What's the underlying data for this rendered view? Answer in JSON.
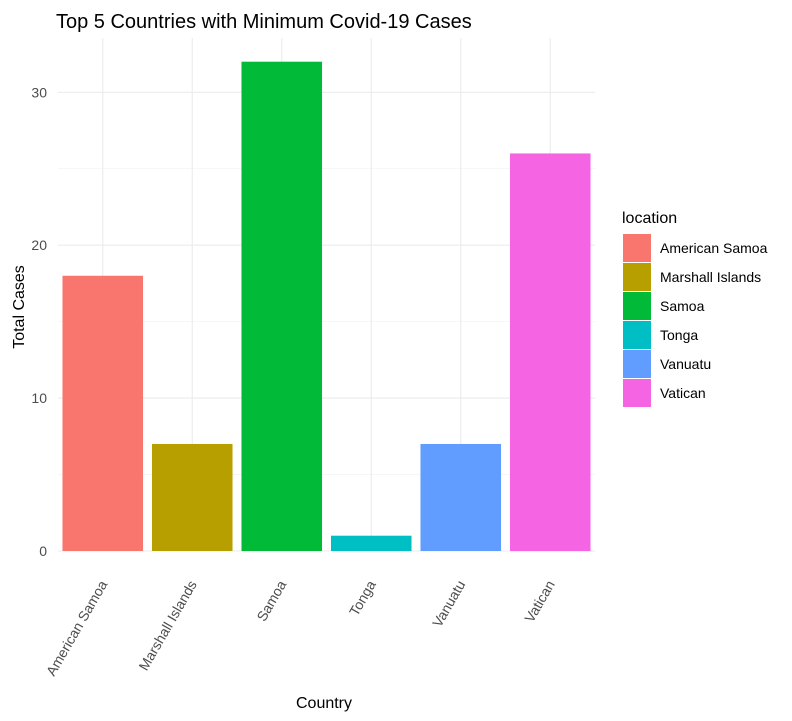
{
  "chart_data": {
    "type": "bar",
    "title": "Top 5 Countries with Minimum Covid-19 Cases",
    "xlabel": "Country",
    "ylabel": "Total Cases",
    "categories": [
      "American Samoa",
      "Marshall Islands",
      "Samoa",
      "Tonga",
      "Vanuatu",
      "Vatican"
    ],
    "values": [
      18,
      7,
      32,
      1,
      7,
      26
    ],
    "colors": [
      "#F8766D",
      "#B79F00",
      "#00BA38",
      "#00BFC4",
      "#619CFF",
      "#F564E3"
    ],
    "y_ticks": [
      0,
      10,
      20,
      30
    ],
    "ylim": [
      0,
      33.55
    ],
    "grid": true,
    "legend": {
      "title": "location",
      "position": "right",
      "entries": [
        "American Samoa",
        "Marshall Islands",
        "Samoa",
        "Tonga",
        "Vanuatu",
        "Vatican"
      ]
    }
  }
}
